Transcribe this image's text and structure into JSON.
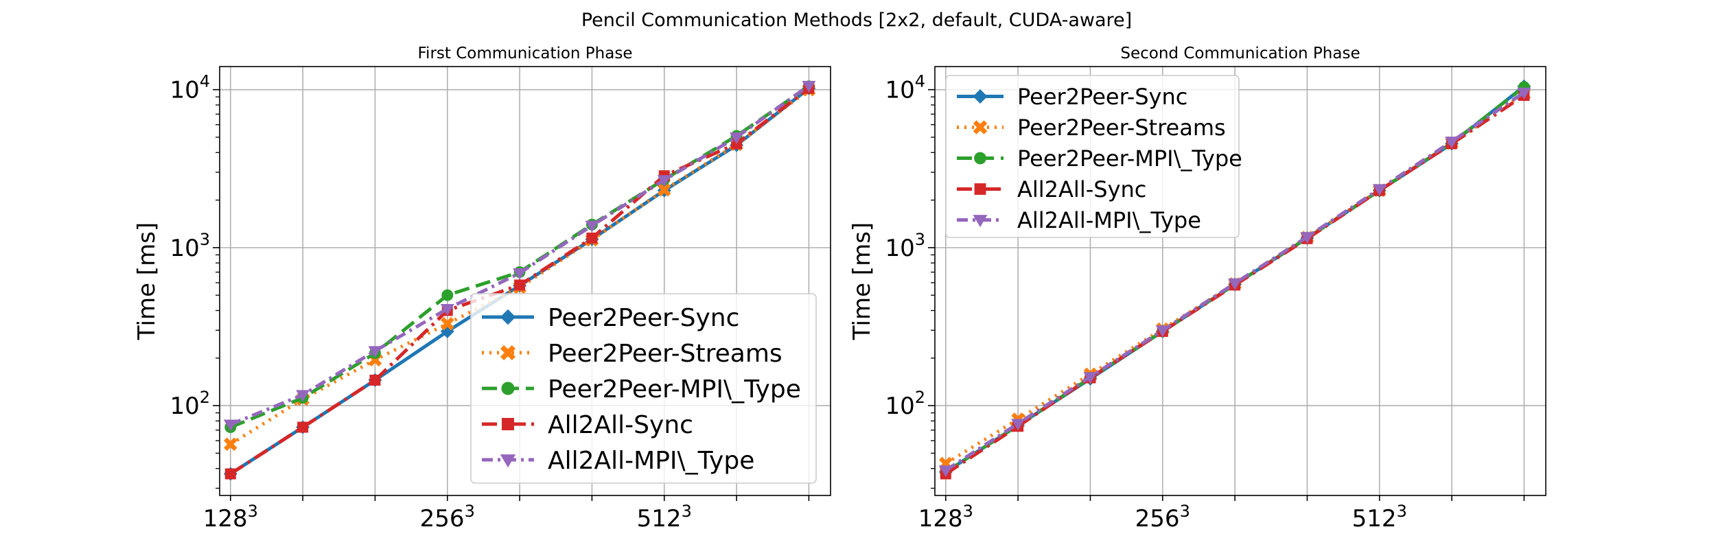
{
  "figure": {
    "suptitle": "Pencil Communication Methods [2x2, default, CUDA-aware]"
  },
  "series_styles": [
    {
      "name": "Peer2Peer-Sync",
      "color": "#1f77b4",
      "dash": "solid",
      "marker": "diamond"
    },
    {
      "name": "Peer2Peer-Streams",
      "color": "#ff7f0e",
      "dash": "dotted",
      "marker": "x"
    },
    {
      "name": "Peer2Peer-MPI\\_Type",
      "color": "#2ca02c",
      "dash": "dashed",
      "marker": "circle"
    },
    {
      "name": "All2All-Sync",
      "color": "#d62728",
      "dash": "dashdot",
      "marker": "square"
    },
    {
      "name": "All2All-MPI\\_Type",
      "color": "#9467bd",
      "dash": "dashdot2",
      "marker": "triangle-down"
    }
  ],
  "chart_data": [
    {
      "type": "line",
      "title": "First Communication Phase",
      "xlabel": "",
      "ylabel": "Time [ms]",
      "yscale": "log",
      "ylim": [
        27,
        14000
      ],
      "xlim": [
        0.85,
        9.3
      ],
      "grid": true,
      "legend_position": "lower right",
      "x": [
        1,
        2,
        3,
        4,
        5,
        6,
        7,
        8,
        9
      ],
      "xticks": [
        {
          "x": 1,
          "base": "128",
          "exp": "3"
        },
        {
          "x": 4,
          "base": "256",
          "exp": "3"
        },
        {
          "x": 7,
          "base": "512",
          "exp": "3"
        }
      ],
      "yticks": [
        {
          "value": 100,
          "base": "10",
          "exp": "2"
        },
        {
          "value": 1000,
          "base": "10",
          "exp": "3"
        },
        {
          "value": 10000,
          "base": "10",
          "exp": "4"
        }
      ],
      "series": [
        {
          "name": "Peer2Peer-Sync",
          "values": [
            37,
            73,
            145,
            295,
            575,
            1130,
            2300,
            4450,
            10200
          ]
        },
        {
          "name": "Peer2Peer-Streams",
          "values": [
            57,
            110,
            195,
            330,
            560,
            1120,
            2320,
            4500,
            10000
          ]
        },
        {
          "name": "Peer2Peer-MPI\\_Type",
          "values": [
            73,
            112,
            215,
            500,
            700,
            1400,
            2700,
            5100,
            10500
          ]
        },
        {
          "name": "All2All-Sync",
          "values": [
            37,
            73,
            145,
            400,
            580,
            1150,
            2850,
            4550,
            10200
          ]
        },
        {
          "name": "All2All-MPI\\_Type",
          "values": [
            76,
            117,
            222,
            410,
            690,
            1380,
            2680,
            5000,
            10600
          ]
        }
      ]
    },
    {
      "type": "line",
      "title": "Second Communication Phase",
      "xlabel": "",
      "ylabel": "Time [ms]",
      "yscale": "log",
      "ylim": [
        27,
        14000
      ],
      "xlim": [
        0.85,
        9.3
      ],
      "grid": true,
      "legend_position": "upper left",
      "x": [
        1,
        2,
        3,
        4,
        5,
        6,
        7,
        8,
        9
      ],
      "xticks": [
        {
          "x": 1,
          "base": "128",
          "exp": "3"
        },
        {
          "x": 4,
          "base": "256",
          "exp": "3"
        },
        {
          "x": 7,
          "base": "512",
          "exp": "3"
        }
      ],
      "yticks": [
        {
          "value": 100,
          "base": "10",
          "exp": "2"
        },
        {
          "value": 1000,
          "base": "10",
          "exp": "3"
        },
        {
          "value": 10000,
          "base": "10",
          "exp": "4"
        }
      ],
      "series": [
        {
          "name": "Peer2Peer-Sync",
          "values": [
            38,
            75,
            148,
            295,
            585,
            1150,
            2300,
            4550,
            10500
          ]
        },
        {
          "name": "Peer2Peer-Streams",
          "values": [
            43,
            82,
            158,
            305,
            590,
            1160,
            2310,
            4600,
            9400
          ]
        },
        {
          "name": "Peer2Peer-MPI\\_Type",
          "values": [
            38,
            75,
            150,
            295,
            585,
            1150,
            2300,
            4600,
            10400
          ]
        },
        {
          "name": "All2All-Sync",
          "values": [
            37,
            74,
            150,
            295,
            580,
            1140,
            2300,
            4550,
            9200
          ]
        },
        {
          "name": "All2All-MPI\\_Type",
          "values": [
            39,
            77,
            152,
            300,
            595,
            1170,
            2350,
            4700,
            9600
          ]
        }
      ]
    }
  ]
}
